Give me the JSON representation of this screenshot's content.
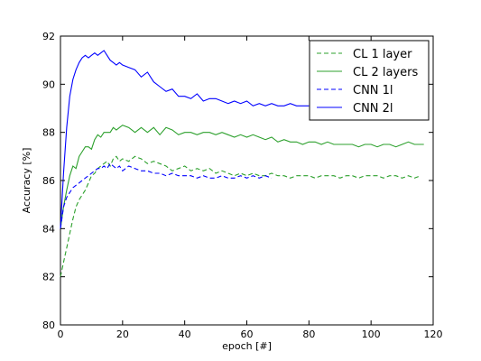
{
  "chart_data": {
    "type": "line",
    "xlabel": "epoch [#]",
    "ylabel": "Accuracy [%]",
    "xlim": [
      0,
      120
    ],
    "ylim": [
      80,
      92
    ],
    "xticks": [
      "0",
      "20",
      "40",
      "60",
      "80",
      "100",
      "120"
    ],
    "yticks": [
      "80",
      "82",
      "84",
      "86",
      "88",
      "90",
      "92"
    ],
    "grid": false,
    "legend_position": "top-right",
    "series": [
      {
        "name": "CL 1 layer",
        "color": "#2ca02c",
        "dash": "dashed",
        "x": [
          0,
          1,
          2,
          3,
          4,
          5,
          6,
          7,
          8,
          9,
          10,
          11,
          12,
          13,
          14,
          15,
          16,
          17,
          18,
          19,
          20,
          22,
          24,
          26,
          28,
          30,
          32,
          34,
          36,
          38,
          40,
          42,
          44,
          46,
          48,
          50,
          52,
          54,
          56,
          58,
          60,
          62,
          64,
          66,
          68,
          70,
          72,
          74,
          76,
          78,
          80,
          82,
          84,
          86,
          88,
          90,
          92,
          94,
          96,
          98,
          100,
          102,
          104,
          106,
          108,
          110,
          112,
          114,
          116
        ],
        "y": [
          82.0,
          82.6,
          83.2,
          83.8,
          84.4,
          84.9,
          85.2,
          85.4,
          85.6,
          85.9,
          86.2,
          86.3,
          86.5,
          86.6,
          86.7,
          86.8,
          86.6,
          86.9,
          87.0,
          86.8,
          86.9,
          86.8,
          87.0,
          86.9,
          86.7,
          86.8,
          86.7,
          86.6,
          86.4,
          86.5,
          86.6,
          86.4,
          86.5,
          86.4,
          86.5,
          86.3,
          86.4,
          86.3,
          86.2,
          86.3,
          86.2,
          86.3,
          86.2,
          86.2,
          86.3,
          86.2,
          86.2,
          86.1,
          86.2,
          86.2,
          86.2,
          86.1,
          86.2,
          86.2,
          86.2,
          86.1,
          86.2,
          86.2,
          86.1,
          86.2,
          86.2,
          86.2,
          86.1,
          86.2,
          86.2,
          86.1,
          86.2,
          86.1,
          86.2
        ]
      },
      {
        "name": "CL 2 layers",
        "color": "#2ca02c",
        "dash": "solid",
        "x": [
          0,
          1,
          2,
          3,
          4,
          5,
          6,
          7,
          8,
          9,
          10,
          11,
          12,
          13,
          14,
          15,
          16,
          17,
          18,
          19,
          20,
          22,
          24,
          26,
          28,
          30,
          32,
          34,
          36,
          38,
          40,
          42,
          44,
          46,
          48,
          50,
          52,
          54,
          56,
          58,
          60,
          62,
          64,
          66,
          68,
          70,
          72,
          74,
          76,
          78,
          80,
          82,
          84,
          86,
          88,
          90,
          92,
          94,
          96,
          98,
          100,
          102,
          104,
          106,
          108,
          110,
          112,
          114,
          117
        ],
        "y": [
          84.0,
          84.9,
          85.6,
          86.2,
          86.6,
          86.5,
          87.0,
          87.2,
          87.4,
          87.4,
          87.3,
          87.7,
          87.9,
          87.8,
          88.0,
          88.0,
          88.0,
          88.2,
          88.1,
          88.2,
          88.3,
          88.2,
          88.0,
          88.2,
          88.0,
          88.2,
          87.9,
          88.2,
          88.1,
          87.9,
          88.0,
          88.0,
          87.9,
          88.0,
          88.0,
          87.9,
          88.0,
          87.9,
          87.8,
          87.9,
          87.8,
          87.9,
          87.8,
          87.7,
          87.8,
          87.6,
          87.7,
          87.6,
          87.6,
          87.5,
          87.6,
          87.6,
          87.5,
          87.6,
          87.5,
          87.5,
          87.5,
          87.5,
          87.4,
          87.5,
          87.5,
          87.4,
          87.5,
          87.5,
          87.4,
          87.5,
          87.6,
          87.5,
          87.5
        ]
      },
      {
        "name": "CNN 1l",
        "color": "#0000ff",
        "dash": "dashed",
        "x": [
          0,
          1,
          2,
          3,
          4,
          5,
          6,
          7,
          8,
          9,
          10,
          11,
          12,
          13,
          14,
          15,
          16,
          17,
          18,
          19,
          20,
          22,
          24,
          26,
          28,
          30,
          32,
          34,
          36,
          38,
          40,
          42,
          44,
          46,
          48,
          50,
          52,
          54,
          56,
          58,
          60,
          62,
          64,
          66,
          68
        ],
        "y": [
          84.0,
          84.9,
          85.3,
          85.5,
          85.7,
          85.8,
          85.9,
          86.0,
          86.1,
          86.2,
          86.3,
          86.4,
          86.5,
          86.5,
          86.6,
          86.5,
          86.7,
          86.6,
          86.5,
          86.6,
          86.4,
          86.6,
          86.5,
          86.4,
          86.4,
          86.3,
          86.3,
          86.2,
          86.3,
          86.2,
          86.2,
          86.2,
          86.1,
          86.2,
          86.1,
          86.1,
          86.2,
          86.1,
          86.1,
          86.2,
          86.1,
          86.2,
          86.1,
          86.2,
          86.1
        ]
      },
      {
        "name": "CNN 2l",
        "color": "#0000ff",
        "dash": "solid",
        "x": [
          0,
          1,
          2,
          3,
          4,
          5,
          6,
          7,
          8,
          9,
          10,
          11,
          12,
          13,
          14,
          15,
          16,
          17,
          18,
          19,
          20,
          22,
          24,
          26,
          28,
          30,
          32,
          34,
          36,
          38,
          40,
          42,
          44,
          46,
          48,
          50,
          52,
          54,
          56,
          58,
          60,
          62,
          64,
          66,
          68,
          70,
          72,
          74,
          76,
          78,
          80
        ],
        "y": [
          84.0,
          86.3,
          88.2,
          89.5,
          90.2,
          90.6,
          90.9,
          91.1,
          91.2,
          91.1,
          91.2,
          91.3,
          91.2,
          91.3,
          91.4,
          91.2,
          91.0,
          90.9,
          90.8,
          90.9,
          90.8,
          90.7,
          90.6,
          90.3,
          90.5,
          90.1,
          89.9,
          89.7,
          89.8,
          89.5,
          89.5,
          89.4,
          89.6,
          89.3,
          89.4,
          89.4,
          89.3,
          89.2,
          89.3,
          89.2,
          89.3,
          89.1,
          89.2,
          89.1,
          89.2,
          89.1,
          89.1,
          89.2,
          89.1,
          89.1,
          89.1
        ]
      }
    ]
  }
}
